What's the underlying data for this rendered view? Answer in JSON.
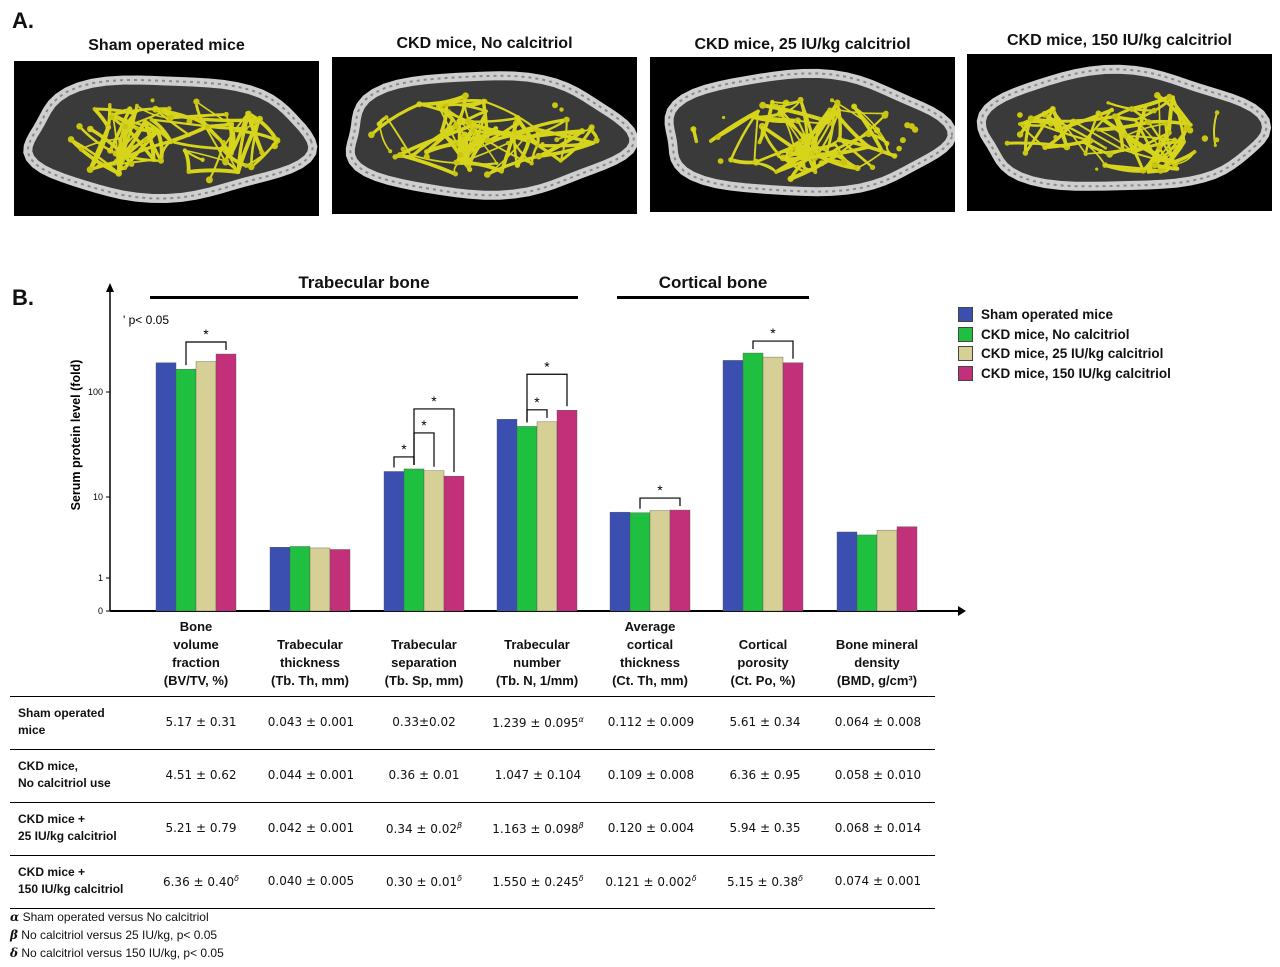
{
  "panel_a": {
    "letter": "A.",
    "images": [
      {
        "title": "Sham operated mice"
      },
      {
        "title": "CKD mice, No calcitriol"
      },
      {
        "title": "CKD mice, 25 IU/kg calcitriol"
      },
      {
        "title": "CKD mice, 150 IU/kg calcitriol"
      }
    ]
  },
  "panel_b": {
    "letter": "B.",
    "section_trabecular": "Trabecular bone",
    "section_cortical": "Cortical bone",
    "pvalue_note": "' p< 0.05"
  },
  "chart_data": {
    "type": "bar",
    "ylabel": "Serum protein level (fold)",
    "yscale": "log",
    "yticks": [
      "0",
      "1",
      "10",
      "100"
    ],
    "legend_position": "right",
    "categories": [
      "Bone volume fraction (BV/TV, %)",
      "Trabecular thickness (Tb. Th, mm)",
      "Trabecular separation (Tb. Sp, mm)",
      "Trabecular number (Tb. N, 1/mm)",
      "Average cortical thickness (Ct. Th, mm)",
      "Cortical porosity (Ct. Po, %)",
      "Bone mineral density (BMD, g/cm³)"
    ],
    "category_lines": [
      [
        "Bone",
        "volume",
        "fraction",
        "(BV/TV, %)"
      ],
      [
        "Trabecular",
        "thickness",
        "(Tb. Th, mm)"
      ],
      [
        "Trabecular",
        "separation",
        "(Tb. Sp, mm)"
      ],
      [
        "Trabecular",
        "number",
        "(Tb. N, 1/mm)"
      ],
      [
        "Average",
        "cortical",
        "thickness",
        "(Ct. Th, mm)"
      ],
      [
        "Cortical",
        "porosity",
        "(Ct. Po, %)"
      ],
      [
        "Bone mineral",
        "density",
        "(BMD, g/cm³)"
      ]
    ],
    "series": [
      {
        "name": "Sham operated mice",
        "color": "#3b4fb0",
        "values": [
          190,
          2.4,
          17.5,
          55,
          6.5,
          200,
          3.7
        ]
      },
      {
        "name": "CKD mice,  No calcitriol",
        "color": "#1fbf3f",
        "values": [
          165,
          2.45,
          18.5,
          47,
          6.4,
          235,
          3.4
        ]
      },
      {
        "name": "CKD mice,  25 IU/kg calcitriol",
        "color": "#d6cf96",
        "values": [
          195,
          2.35,
          17.8,
          52,
          6.8,
          215,
          3.9
        ]
      },
      {
        "name": "CKD mice, 150 IU/kg calcitriol",
        "color": "#c3307a",
        "values": [
          230,
          2.25,
          15.8,
          67,
          6.9,
          190,
          4.3
        ]
      }
    ],
    "significance": [
      {
        "category": 0,
        "from": 1,
        "to": 3,
        "label": "*"
      },
      {
        "category": 2,
        "from": 0,
        "to": 1,
        "label": "*"
      },
      {
        "category": 2,
        "from": 1,
        "to": 2,
        "label": "*"
      },
      {
        "category": 2,
        "from": 1,
        "to": 3,
        "label": "*"
      },
      {
        "category": 3,
        "from": 1,
        "to": 2,
        "label": "*"
      },
      {
        "category": 3,
        "from": 1,
        "to": 3,
        "label": "*"
      },
      {
        "category": 4,
        "from": 1,
        "to": 3,
        "label": "*"
      },
      {
        "category": 5,
        "from": 1,
        "to": 3,
        "label": "*"
      }
    ]
  },
  "table": {
    "rows": [
      {
        "label_lines": [
          "Sham operated",
          "mice"
        ],
        "cells": [
          {
            "v": "5.17 ± 0.31"
          },
          {
            "v": "0.043 ± 0.001"
          },
          {
            "v": "0.33±0.02"
          },
          {
            "v": "1.239 ± 0.095",
            "sup": "α"
          },
          {
            "v": "0.112 ± 0.009"
          },
          {
            "v": "5.61 ± 0.34"
          },
          {
            "v": "0.064 ± 0.008"
          }
        ]
      },
      {
        "label_lines": [
          "CKD mice,",
          "No calcitriol use"
        ],
        "cells": [
          {
            "v": "4.51 ± 0.62"
          },
          {
            "v": "0.044 ± 0.001"
          },
          {
            "v": "0.36 ± 0.01"
          },
          {
            "v": "1.047 ± 0.104"
          },
          {
            "v": "0.109 ± 0.008"
          },
          {
            "v": "6.36 ± 0.95"
          },
          {
            "v": "0.058 ± 0.010"
          }
        ]
      },
      {
        "label_lines": [
          "CKD mice +",
          "25 IU/kg calcitriol"
        ],
        "cells": [
          {
            "v": "5.21 ± 0.79"
          },
          {
            "v": "0.042 ± 0.001"
          },
          {
            "v": "0.34 ± 0.02",
            "sup": "β"
          },
          {
            "v": "1.163 ± 0.098",
            "sup": "β"
          },
          {
            "v": "0.120 ± 0.004"
          },
          {
            "v": "5.94 ± 0.35"
          },
          {
            "v": "0.068 ± 0.014"
          }
        ]
      },
      {
        "label_lines": [
          "CKD mice +",
          "150 IU/kg calcitriol"
        ],
        "cells": [
          {
            "v": "6.36 ± 0.40",
            "sup": "δ"
          },
          {
            "v": "0.040 ± 0.005"
          },
          {
            "v": "0.30 ± 0.01",
            "sup": "δ"
          },
          {
            "v": "1.550 ± 0.245",
            "sup": "δ"
          },
          {
            "v": "0.121 ± 0.002",
            "sup": "δ"
          },
          {
            "v": "5.15 ± 0.38",
            "sup": "δ"
          },
          {
            "v": "0.074 ± 0.001"
          }
        ]
      }
    ]
  },
  "footnotes": [
    {
      "symbol": "α",
      "text": " Sham operated versus No calcitriol"
    },
    {
      "symbol": "β",
      "text": " No calcitriol versus 25 IU/kg, p< 0.05"
    },
    {
      "symbol": "δ",
      "text": " No calcitriol versus 150 IU/kg, p< 0.05"
    }
  ]
}
